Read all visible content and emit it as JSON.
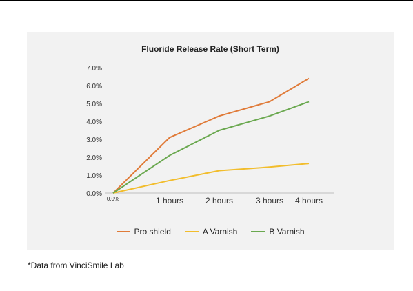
{
  "chart_data": {
    "type": "line",
    "title": "Fluoride Release Rate (Short Term)",
    "xlabel": "",
    "ylabel": "",
    "categories": [
      "0.0%",
      "1 hours",
      "2 hours",
      "3 hours",
      "4 hours"
    ],
    "y_ticks": [
      "0.0%",
      "1.0%",
      "2.0%",
      "3.0%",
      "4.0%",
      "5.0%",
      "6.0%",
      "7.0%"
    ],
    "ylim": [
      0,
      7
    ],
    "grid": false,
    "legend_position": "bottom",
    "series": [
      {
        "name": "Pro shield",
        "color": "#e07b39",
        "values": [
          0,
          3.1,
          4.3,
          5.1,
          6.4
        ]
      },
      {
        "name": "A Varnish",
        "color": "#f2bd2c",
        "values": [
          0,
          0.7,
          1.25,
          1.45,
          1.65
        ]
      },
      {
        "name": "B Varnish",
        "color": "#6aa84f",
        "values": [
          0,
          2.1,
          3.5,
          4.3,
          5.1
        ]
      }
    ]
  },
  "footnote": "*Data from VinciSmile Lab"
}
